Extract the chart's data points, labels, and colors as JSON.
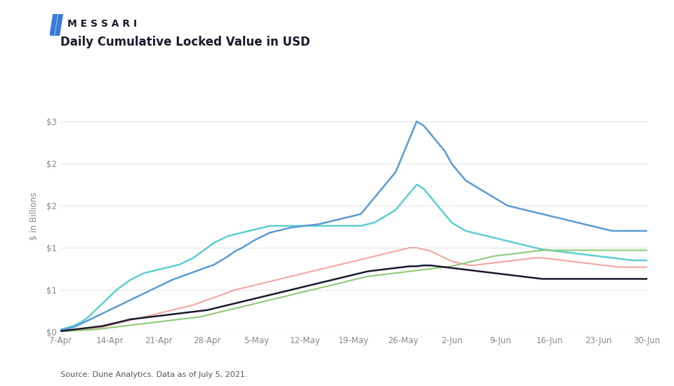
{
  "title": "Daily Cumulative Locked Value in USD",
  "ylabel": "$ in Billions",
  "source": "Source: Dune Analytics. Data as of July 5, 2021.",
  "background_color": "#ffffff",
  "series": {
    "AAVE": {
      "color": "#1a1a2e",
      "linewidth": 1.8,
      "values": [
        0.01,
        0.02,
        0.03,
        0.04,
        0.05,
        0.06,
        0.07,
        0.09,
        0.11,
        0.13,
        0.15,
        0.16,
        0.17,
        0.18,
        0.19,
        0.2,
        0.21,
        0.22,
        0.23,
        0.24,
        0.25,
        0.26,
        0.28,
        0.3,
        0.32,
        0.34,
        0.36,
        0.38,
        0.4,
        0.42,
        0.44,
        0.46,
        0.48,
        0.5,
        0.52,
        0.54,
        0.56,
        0.58,
        0.6,
        0.62,
        0.64,
        0.66,
        0.68,
        0.7,
        0.72,
        0.73,
        0.74,
        0.75,
        0.76,
        0.77,
        0.78,
        0.78,
        0.79,
        0.79,
        0.78,
        0.77,
        0.76,
        0.75,
        0.74,
        0.73,
        0.72,
        0.71,
        0.7,
        0.69,
        0.68,
        0.67,
        0.66,
        0.65,
        0.64,
        0.63,
        0.63,
        0.63,
        0.63,
        0.63,
        0.63,
        0.63,
        0.63,
        0.63,
        0.63,
        0.63,
        0.63,
        0.63,
        0.63,
        0.63,
        0.63
      ]
    },
    "DAI": {
      "color": "#90c978",
      "linewidth": 1.5,
      "values": [
        0.005,
        0.01,
        0.015,
        0.02,
        0.025,
        0.03,
        0.04,
        0.05,
        0.06,
        0.07,
        0.08,
        0.09,
        0.1,
        0.11,
        0.12,
        0.13,
        0.14,
        0.15,
        0.16,
        0.17,
        0.18,
        0.2,
        0.22,
        0.24,
        0.26,
        0.28,
        0.3,
        0.32,
        0.34,
        0.36,
        0.38,
        0.4,
        0.42,
        0.44,
        0.46,
        0.48,
        0.5,
        0.52,
        0.54,
        0.56,
        0.58,
        0.6,
        0.62,
        0.64,
        0.66,
        0.67,
        0.68,
        0.69,
        0.7,
        0.71,
        0.72,
        0.73,
        0.74,
        0.75,
        0.76,
        0.77,
        0.78,
        0.8,
        0.82,
        0.84,
        0.86,
        0.88,
        0.9,
        0.91,
        0.92,
        0.93,
        0.94,
        0.95,
        0.96,
        0.97,
        0.97,
        0.97,
        0.97,
        0.97,
        0.97,
        0.97,
        0.97,
        0.97,
        0.97,
        0.97,
        0.97,
        0.97,
        0.97,
        0.97,
        0.97
      ]
    },
    "USDC": {
      "color": "#5b9bd5",
      "linewidth": 1.8,
      "values": [
        0.02,
        0.04,
        0.06,
        0.1,
        0.14,
        0.18,
        0.22,
        0.26,
        0.3,
        0.34,
        0.38,
        0.42,
        0.46,
        0.5,
        0.54,
        0.58,
        0.62,
        0.65,
        0.68,
        0.71,
        0.74,
        0.77,
        0.8,
        0.85,
        0.9,
        0.96,
        1.0,
        1.05,
        1.1,
        1.14,
        1.18,
        1.2,
        1.22,
        1.24,
        1.25,
        1.26,
        1.27,
        1.28,
        1.3,
        1.32,
        1.34,
        1.36,
        1.38,
        1.4,
        1.5,
        1.6,
        1.7,
        1.8,
        1.9,
        2.1,
        2.3,
        2.5,
        2.45,
        2.35,
        2.25,
        2.15,
        2.0,
        1.9,
        1.8,
        1.75,
        1.7,
        1.65,
        1.6,
        1.55,
        1.5,
        1.48,
        1.46,
        1.44,
        1.42,
        1.4,
        1.38,
        1.36,
        1.34,
        1.32,
        1.3,
        1.28,
        1.26,
        1.24,
        1.22,
        1.2,
        1.2,
        1.2,
        1.2,
        1.2,
        1.2
      ]
    },
    "USDT": {
      "color": "#f4a5a0",
      "linewidth": 1.5,
      "values": [
        0.005,
        0.01,
        0.02,
        0.03,
        0.04,
        0.05,
        0.06,
        0.08,
        0.1,
        0.12,
        0.14,
        0.16,
        0.18,
        0.2,
        0.22,
        0.24,
        0.26,
        0.28,
        0.3,
        0.32,
        0.35,
        0.38,
        0.41,
        0.44,
        0.47,
        0.5,
        0.52,
        0.54,
        0.56,
        0.58,
        0.6,
        0.62,
        0.64,
        0.66,
        0.68,
        0.7,
        0.72,
        0.74,
        0.76,
        0.78,
        0.8,
        0.82,
        0.84,
        0.86,
        0.88,
        0.9,
        0.92,
        0.94,
        0.96,
        0.98,
        1.0,
        1.0,
        0.98,
        0.96,
        0.92,
        0.88,
        0.84,
        0.82,
        0.8,
        0.79,
        0.8,
        0.81,
        0.82,
        0.83,
        0.84,
        0.85,
        0.86,
        0.87,
        0.88,
        0.88,
        0.87,
        0.86,
        0.85,
        0.84,
        0.83,
        0.82,
        0.81,
        0.8,
        0.79,
        0.78,
        0.77,
        0.77,
        0.77,
        0.77,
        0.77
      ]
    },
    "WBTC": {
      "color": "#5dcfcf",
      "linewidth": 1.8,
      "values": [
        0.03,
        0.05,
        0.08,
        0.12,
        0.18,
        0.26,
        0.34,
        0.42,
        0.5,
        0.56,
        0.62,
        0.66,
        0.7,
        0.72,
        0.74,
        0.76,
        0.78,
        0.8,
        0.84,
        0.88,
        0.94,
        1.0,
        1.06,
        1.1,
        1.14,
        1.16,
        1.18,
        1.2,
        1.22,
        1.24,
        1.26,
        1.26,
        1.26,
        1.26,
        1.26,
        1.26,
        1.26,
        1.26,
        1.26,
        1.26,
        1.26,
        1.26,
        1.26,
        1.26,
        1.28,
        1.3,
        1.35,
        1.4,
        1.45,
        1.55,
        1.65,
        1.75,
        1.7,
        1.6,
        1.5,
        1.4,
        1.3,
        1.25,
        1.2,
        1.18,
        1.16,
        1.14,
        1.12,
        1.1,
        1.08,
        1.06,
        1.04,
        1.02,
        1.0,
        0.98,
        0.97,
        0.96,
        0.95,
        0.94,
        0.93,
        0.92,
        0.91,
        0.9,
        0.89,
        0.88,
        0.87,
        0.86,
        0.85,
        0.85,
        0.85
      ]
    }
  },
  "xtick_labels": [
    "7-Apr",
    "14-Apr",
    "21-Apr",
    "28-Apr",
    "5-May",
    "12-May",
    "19-May",
    "26-May",
    "2-Jun",
    "9-Jun",
    "16-Jun",
    "23-Jun",
    "30-Jun"
  ],
  "xtick_positions": [
    0,
    7,
    14,
    21,
    28,
    35,
    42,
    49,
    56,
    63,
    70,
    77,
    84
  ],
  "ytick_values": [
    0.0,
    0.5,
    1.0,
    1.5,
    2.0,
    2.5
  ],
  "ytick_labels": [
    "$0",
    "$1",
    "$1",
    "$2",
    "$2",
    "$3"
  ],
  "ylim": [
    0.0,
    2.75
  ],
  "grid_color": "#e5e5e5",
  "logo_color": "#3a7bd5",
  "title_color": "#1a1a2e",
  "tick_color": "#888888",
  "source_color": "#555555"
}
